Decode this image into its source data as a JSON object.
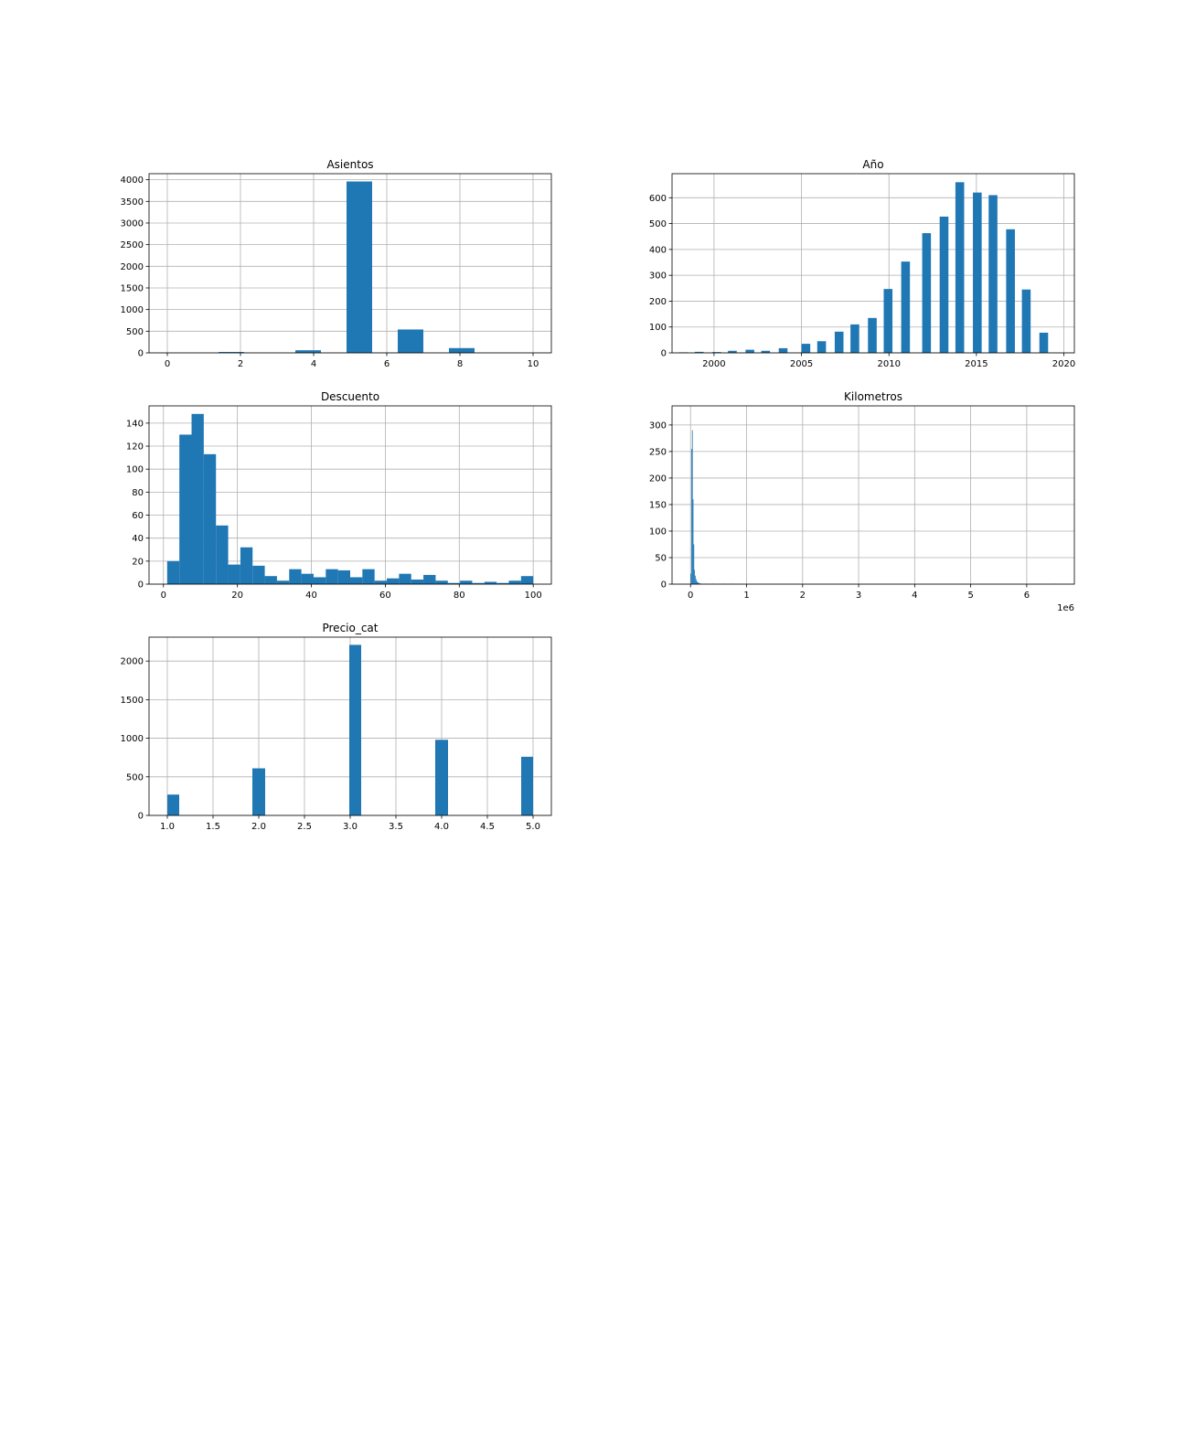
{
  "style": {
    "bar_color": "#1f77b4",
    "grid_color": "#b0b0b0",
    "grid": true
  },
  "chart_data": [
    {
      "type": "bar",
      "title": "Asientos",
      "xlim": [
        -0.5,
        10.5
      ],
      "ylim": [
        0,
        4140
      ],
      "xticks": [
        0,
        2,
        4,
        6,
        8,
        10
      ],
      "xtick_labels": [
        "0",
        "2",
        "4",
        "6",
        "8",
        "10"
      ],
      "yticks": [
        0,
        500,
        1000,
        1500,
        2000,
        2500,
        3000,
        3500,
        4000
      ],
      "ytick_labels": [
        "0",
        "500",
        "1000",
        "1500",
        "2000",
        "2500",
        "3000",
        "3500",
        "4000"
      ],
      "bars": [
        {
          "x0": 1.4,
          "x1": 2.1,
          "y": 20
        },
        {
          "x0": 3.5,
          "x1": 4.2,
          "y": 60
        },
        {
          "x0": 4.9,
          "x1": 5.6,
          "y": 3960
        },
        {
          "x0": 5.6,
          "x1": 6.3,
          "y": 5
        },
        {
          "x0": 6.3,
          "x1": 7.0,
          "y": 540
        },
        {
          "x0": 7.7,
          "x1": 8.4,
          "y": 110
        },
        {
          "x0": 9.8,
          "x1": 10.0,
          "y": 2
        }
      ]
    },
    {
      "type": "bar",
      "title": "Año",
      "xlim": [
        1997.6,
        2020.6
      ],
      "ylim": [
        0,
        693
      ],
      "xticks": [
        2000,
        2005,
        2010,
        2015,
        2020
      ],
      "xtick_labels": [
        "2000",
        "2005",
        "2010",
        "2015",
        "2020"
      ],
      "yticks": [
        0,
        100,
        200,
        300,
        400,
        500,
        600
      ],
      "ytick_labels": [
        "0",
        "100",
        "200",
        "300",
        "400",
        "500",
        "600"
      ],
      "bars": [
        {
          "x0": 1998.0,
          "x1": 1998.5,
          "y": 2
        },
        {
          "x0": 1998.9,
          "x1": 1999.4,
          "y": 4
        },
        {
          "x0": 1999.9,
          "x1": 2000.4,
          "y": 3
        },
        {
          "x0": 2000.8,
          "x1": 2001.3,
          "y": 8
        },
        {
          "x0": 2001.8,
          "x1": 2002.3,
          "y": 12
        },
        {
          "x0": 2002.7,
          "x1": 2003.2,
          "y": 8
        },
        {
          "x0": 2003.7,
          "x1": 2004.2,
          "y": 18
        },
        {
          "x0": 2005.0,
          "x1": 2005.5,
          "y": 35
        },
        {
          "x0": 2005.9,
          "x1": 2006.4,
          "y": 45
        },
        {
          "x0": 2006.9,
          "x1": 2007.4,
          "y": 82
        },
        {
          "x0": 2007.8,
          "x1": 2008.3,
          "y": 110
        },
        {
          "x0": 2008.8,
          "x1": 2009.3,
          "y": 135
        },
        {
          "x0": 2009.7,
          "x1": 2010.2,
          "y": 247
        },
        {
          "x0": 2010.7,
          "x1": 2011.2,
          "y": 353
        },
        {
          "x0": 2011.9,
          "x1": 2012.4,
          "y": 463
        },
        {
          "x0": 2012.9,
          "x1": 2013.4,
          "y": 527
        },
        {
          "x0": 2013.8,
          "x1": 2014.3,
          "y": 660
        },
        {
          "x0": 2014.8,
          "x1": 2015.3,
          "y": 620
        },
        {
          "x0": 2015.7,
          "x1": 2016.2,
          "y": 610
        },
        {
          "x0": 2016.7,
          "x1": 2017.2,
          "y": 478
        },
        {
          "x0": 2017.6,
          "x1": 2018.1,
          "y": 245
        },
        {
          "x0": 2018.6,
          "x1": 2019.1,
          "y": 78
        }
      ]
    },
    {
      "type": "bar",
      "title": "Descuento",
      "xlim": [
        -3.9,
        104.9
      ],
      "ylim": [
        0,
        155
      ],
      "xticks": [
        0,
        20,
        40,
        60,
        80,
        100
      ],
      "xtick_labels": [
        "0",
        "20",
        "40",
        "60",
        "80",
        "100"
      ],
      "yticks": [
        0,
        20,
        40,
        60,
        80,
        100,
        120,
        140
      ],
      "ytick_labels": [
        "0",
        "20",
        "40",
        "60",
        "80",
        "100",
        "120",
        "140"
      ],
      "bars": [
        {
          "x0": 1.0,
          "x1": 4.3,
          "y": 20
        },
        {
          "x0": 4.3,
          "x1": 7.6,
          "y": 130
        },
        {
          "x0": 7.6,
          "x1": 10.9,
          "y": 148
        },
        {
          "x0": 10.9,
          "x1": 14.2,
          "y": 113
        },
        {
          "x0": 14.2,
          "x1": 17.5,
          "y": 51
        },
        {
          "x0": 17.5,
          "x1": 20.8,
          "y": 17
        },
        {
          "x0": 20.8,
          "x1": 24.1,
          "y": 32
        },
        {
          "x0": 24.1,
          "x1": 27.4,
          "y": 16
        },
        {
          "x0": 27.4,
          "x1": 30.7,
          "y": 7
        },
        {
          "x0": 30.7,
          "x1": 34.0,
          "y": 3
        },
        {
          "x0": 34.0,
          "x1": 37.3,
          "y": 13
        },
        {
          "x0": 37.3,
          "x1": 40.6,
          "y": 9
        },
        {
          "x0": 40.6,
          "x1": 43.9,
          "y": 6
        },
        {
          "x0": 43.9,
          "x1": 47.2,
          "y": 13
        },
        {
          "x0": 47.2,
          "x1": 50.5,
          "y": 12
        },
        {
          "x0": 50.5,
          "x1": 53.8,
          "y": 6
        },
        {
          "x0": 53.8,
          "x1": 57.1,
          "y": 13
        },
        {
          "x0": 57.1,
          "x1": 60.4,
          "y": 3
        },
        {
          "x0": 60.4,
          "x1": 63.7,
          "y": 5
        },
        {
          "x0": 63.7,
          "x1": 67.0,
          "y": 9
        },
        {
          "x0": 67.0,
          "x1": 70.3,
          "y": 4
        },
        {
          "x0": 70.3,
          "x1": 73.6,
          "y": 8
        },
        {
          "x0": 73.6,
          "x1": 76.9,
          "y": 3
        },
        {
          "x0": 76.9,
          "x1": 80.2,
          "y": 1
        },
        {
          "x0": 80.2,
          "x1": 83.5,
          "y": 3
        },
        {
          "x0": 83.5,
          "x1": 86.8,
          "y": 1
        },
        {
          "x0": 86.8,
          "x1": 90.1,
          "y": 2
        },
        {
          "x0": 90.1,
          "x1": 93.4,
          "y": 1
        },
        {
          "x0": 93.4,
          "x1": 96.7,
          "y": 3
        },
        {
          "x0": 96.7,
          "x1": 100.0,
          "y": 1
        }
      ],
      "bars_extra": [
        {
          "x0": 96.7,
          "x1": 100.0,
          "y": 7
        }
      ]
    },
    {
      "type": "bar",
      "title": "Kilometros",
      "offset_label": "1e6",
      "xlim": [
        -0.33,
        6.85
      ],
      "ylim": [
        0,
        336
      ],
      "xticks": [
        0,
        1,
        2,
        3,
        4,
        5,
        6
      ],
      "xtick_labels": [
        "0",
        "1",
        "2",
        "3",
        "4",
        "5",
        "6"
      ],
      "yticks": [
        0,
        50,
        100,
        150,
        200,
        250,
        300
      ],
      "ytick_labels": [
        "0",
        "50",
        "100",
        "150",
        "200",
        "250",
        "300"
      ],
      "bars": [
        {
          "x0": 0.0,
          "x1": 0.013,
          "y": 20
        },
        {
          "x0": 0.013,
          "x1": 0.026,
          "y": 255
        },
        {
          "x0": 0.026,
          "x1": 0.039,
          "y": 290
        },
        {
          "x0": 0.039,
          "x1": 0.052,
          "y": 160
        },
        {
          "x0": 0.052,
          "x1": 0.065,
          "y": 75
        },
        {
          "x0": 0.065,
          "x1": 0.078,
          "y": 27
        },
        {
          "x0": 0.078,
          "x1": 0.091,
          "y": 16
        },
        {
          "x0": 0.091,
          "x1": 0.104,
          "y": 10
        },
        {
          "x0": 0.104,
          "x1": 0.117,
          "y": 6
        },
        {
          "x0": 0.117,
          "x1": 0.13,
          "y": 4
        },
        {
          "x0": 0.13,
          "x1": 0.143,
          "y": 3
        },
        {
          "x0": 0.143,
          "x1": 0.156,
          "y": 2
        },
        {
          "x0": 0.156,
          "x1": 0.169,
          "y": 2
        },
        {
          "x0": 0.169,
          "x1": 0.182,
          "y": 1
        },
        {
          "x0": 0.182,
          "x1": 0.195,
          "y": 1
        },
        {
          "x0": 0.26,
          "x1": 0.273,
          "y": 1
        },
        {
          "x0": 0.39,
          "x1": 0.403,
          "y": 1
        },
        {
          "x0": 0.6,
          "x1": 0.613,
          "y": 1
        },
        {
          "x0": 0.72,
          "x1": 0.733,
          "y": 1
        },
        {
          "x0": 6.5,
          "x1": 6.513,
          "y": 1
        }
      ]
    },
    {
      "type": "bar",
      "title": "Precio_cat",
      "xlim": [
        0.8,
        5.2
      ],
      "ylim": [
        0,
        2310
      ],
      "xticks": [
        1.0,
        1.5,
        2.0,
        2.5,
        3.0,
        3.5,
        4.0,
        4.5,
        5.0
      ],
      "xtick_labels": [
        "1.0",
        "1.5",
        "2.0",
        "2.5",
        "3.0",
        "3.5",
        "4.0",
        "4.5",
        "5.0"
      ],
      "yticks": [
        0,
        500,
        1000,
        1500,
        2000
      ],
      "ytick_labels": [
        "0",
        "500",
        "1000",
        "1500",
        "2000"
      ],
      "bars": [
        {
          "x0": 1.0,
          "x1": 1.13,
          "y": 270
        },
        {
          "x0": 1.93,
          "x1": 2.07,
          "y": 610
        },
        {
          "x0": 2.99,
          "x1": 3.12,
          "y": 2210
        },
        {
          "x0": 3.93,
          "x1": 4.07,
          "y": 980
        },
        {
          "x0": 4.87,
          "x1": 5.0,
          "y": 760
        }
      ]
    }
  ]
}
